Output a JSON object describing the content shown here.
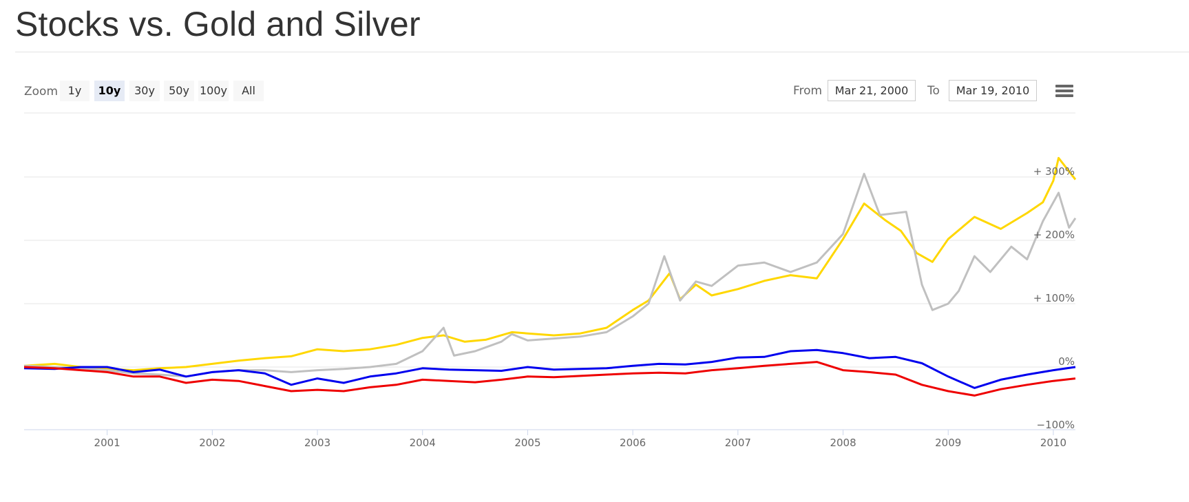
{
  "page": {
    "title": "Stocks vs. Gold and Silver"
  },
  "toolbar": {
    "zoom_label": "Zoom",
    "zoom_buttons": [
      "1y",
      "10y",
      "30y",
      "50y",
      "100y",
      "All"
    ],
    "active_zoom": "10y",
    "from_label": "From",
    "from_value": "Mar 21, 2000",
    "to_label": "To",
    "to_value": "Mar 19, 2010",
    "menu_icon": "hamburger-menu-icon"
  },
  "chart_data": {
    "type": "line",
    "title": "",
    "xlabel": "",
    "ylabel": "",
    "grid": true,
    "x_tick_labels": [
      "2001",
      "2002",
      "2003",
      "2004",
      "2005",
      "2006",
      "2007",
      "2008",
      "2009",
      "2010"
    ],
    "y_tick_labels": [
      "+ 300%",
      "+ 200%",
      "+ 100%",
      "0%",
      "−100%"
    ],
    "y_tick_values": [
      300,
      200,
      100,
      0,
      -100
    ],
    "ylim": [
      -100,
      300
    ],
    "xlim": [
      2000.21,
      2010.21
    ],
    "series": [
      {
        "color": "#ffd700",
        "points": [
          [
            2000.21,
            2
          ],
          [
            2000.5,
            5
          ],
          [
            2000.75,
            0
          ],
          [
            2001,
            -3
          ],
          [
            2001.25,
            -5
          ],
          [
            2001.5,
            -2
          ],
          [
            2001.75,
            0
          ],
          [
            2002,
            5
          ],
          [
            2002.25,
            10
          ],
          [
            2002.5,
            14
          ],
          [
            2002.75,
            17
          ],
          [
            2003,
            28
          ],
          [
            2003.25,
            25
          ],
          [
            2003.5,
            28
          ],
          [
            2003.75,
            35
          ],
          [
            2004,
            46
          ],
          [
            2004.2,
            50
          ],
          [
            2004.4,
            40
          ],
          [
            2004.6,
            43
          ],
          [
            2004.85,
            55
          ],
          [
            2005,
            53
          ],
          [
            2005.25,
            50
          ],
          [
            2005.5,
            53
          ],
          [
            2005.75,
            62
          ],
          [
            2006,
            90
          ],
          [
            2006.15,
            105
          ],
          [
            2006.35,
            148
          ],
          [
            2006.45,
            107
          ],
          [
            2006.6,
            130
          ],
          [
            2006.75,
            113
          ],
          [
            2007,
            123
          ],
          [
            2007.25,
            136
          ],
          [
            2007.5,
            145
          ],
          [
            2007.75,
            140
          ],
          [
            2008,
            202
          ],
          [
            2008.2,
            258
          ],
          [
            2008.4,
            232
          ],
          [
            2008.55,
            215
          ],
          [
            2008.7,
            180
          ],
          [
            2008.85,
            166
          ],
          [
            2009,
            202
          ],
          [
            2009.25,
            237
          ],
          [
            2009.5,
            218
          ],
          [
            2009.75,
            243
          ],
          [
            2009.9,
            260
          ],
          [
            2010,
            294
          ],
          [
            2010.05,
            330
          ],
          [
            2010.21,
            296
          ]
        ]
      },
      {
        "color": "#c0c0c0",
        "points": [
          [
            2000.21,
            2
          ],
          [
            2000.5,
            0
          ],
          [
            2000.75,
            -2
          ],
          [
            2001,
            -5
          ],
          [
            2001.25,
            -10
          ],
          [
            2001.5,
            -12
          ],
          [
            2001.75,
            -15
          ],
          [
            2002,
            -8
          ],
          [
            2002.25,
            -5
          ],
          [
            2002.5,
            -5
          ],
          [
            2002.75,
            -8
          ],
          [
            2003,
            -5
          ],
          [
            2003.25,
            -3
          ],
          [
            2003.5,
            0
          ],
          [
            2003.75,
            5
          ],
          [
            2004,
            25
          ],
          [
            2004.2,
            62
          ],
          [
            2004.3,
            18
          ],
          [
            2004.5,
            25
          ],
          [
            2004.75,
            40
          ],
          [
            2004.85,
            52
          ],
          [
            2005,
            42
          ],
          [
            2005.25,
            45
          ],
          [
            2005.5,
            48
          ],
          [
            2005.75,
            55
          ],
          [
            2006,
            80
          ],
          [
            2006.15,
            100
          ],
          [
            2006.3,
            175
          ],
          [
            2006.45,
            105
          ],
          [
            2006.6,
            135
          ],
          [
            2006.75,
            128
          ],
          [
            2007,
            160
          ],
          [
            2007.25,
            165
          ],
          [
            2007.5,
            150
          ],
          [
            2007.75,
            165
          ],
          [
            2008,
            210
          ],
          [
            2008.2,
            305
          ],
          [
            2008.35,
            240
          ],
          [
            2008.6,
            245
          ],
          [
            2008.75,
            130
          ],
          [
            2008.85,
            90
          ],
          [
            2009,
            100
          ],
          [
            2009.1,
            120
          ],
          [
            2009.25,
            175
          ],
          [
            2009.4,
            150
          ],
          [
            2009.6,
            190
          ],
          [
            2009.75,
            170
          ],
          [
            2009.9,
            230
          ],
          [
            2010.05,
            275
          ],
          [
            2010.15,
            220
          ],
          [
            2010.21,
            235
          ]
        ]
      },
      {
        "color": "#0000ee",
        "points": [
          [
            2000.21,
            -2
          ],
          [
            2000.5,
            -3
          ],
          [
            2000.75,
            0
          ],
          [
            2001,
            0
          ],
          [
            2001.25,
            -8
          ],
          [
            2001.5,
            -4
          ],
          [
            2001.75,
            -15
          ],
          [
            2002,
            -8
          ],
          [
            2002.25,
            -5
          ],
          [
            2002.5,
            -10
          ],
          [
            2002.75,
            -28
          ],
          [
            2003,
            -18
          ],
          [
            2003.25,
            -25
          ],
          [
            2003.5,
            -15
          ],
          [
            2003.75,
            -10
          ],
          [
            2004,
            -2
          ],
          [
            2004.25,
            -4
          ],
          [
            2004.5,
            -5
          ],
          [
            2004.75,
            -6
          ],
          [
            2005,
            0
          ],
          [
            2005.25,
            -4
          ],
          [
            2005.5,
            -3
          ],
          [
            2005.75,
            -2
          ],
          [
            2006,
            2
          ],
          [
            2006.25,
            5
          ],
          [
            2006.5,
            4
          ],
          [
            2006.75,
            8
          ],
          [
            2007,
            15
          ],
          [
            2007.25,
            16
          ],
          [
            2007.5,
            25
          ],
          [
            2007.75,
            27
          ],
          [
            2008,
            22
          ],
          [
            2008.25,
            14
          ],
          [
            2008.5,
            16
          ],
          [
            2008.75,
            6
          ],
          [
            2009,
            -15
          ],
          [
            2009.25,
            -33
          ],
          [
            2009.5,
            -20
          ],
          [
            2009.75,
            -12
          ],
          [
            2010,
            -5
          ],
          [
            2010.21,
            0
          ]
        ]
      },
      {
        "color": "#ee0000",
        "points": [
          [
            2000.21,
            0
          ],
          [
            2000.5,
            -2
          ],
          [
            2000.75,
            -5
          ],
          [
            2001,
            -8
          ],
          [
            2001.25,
            -15
          ],
          [
            2001.5,
            -15
          ],
          [
            2001.75,
            -25
          ],
          [
            2002,
            -20
          ],
          [
            2002.25,
            -22
          ],
          [
            2002.5,
            -30
          ],
          [
            2002.75,
            -38
          ],
          [
            2003,
            -36
          ],
          [
            2003.25,
            -38
          ],
          [
            2003.5,
            -32
          ],
          [
            2003.75,
            -28
          ],
          [
            2004,
            -20
          ],
          [
            2004.25,
            -22
          ],
          [
            2004.5,
            -24
          ],
          [
            2004.75,
            -20
          ],
          [
            2005,
            -15
          ],
          [
            2005.25,
            -16
          ],
          [
            2005.5,
            -14
          ],
          [
            2005.75,
            -12
          ],
          [
            2006,
            -10
          ],
          [
            2006.25,
            -9
          ],
          [
            2006.5,
            -10
          ],
          [
            2006.75,
            -5
          ],
          [
            2007,
            -2
          ],
          [
            2007.25,
            2
          ],
          [
            2007.5,
            5
          ],
          [
            2007.75,
            8
          ],
          [
            2008,
            -5
          ],
          [
            2008.25,
            -8
          ],
          [
            2008.5,
            -12
          ],
          [
            2008.75,
            -28
          ],
          [
            2009,
            -38
          ],
          [
            2009.25,
            -45
          ],
          [
            2009.5,
            -35
          ],
          [
            2009.75,
            -28
          ],
          [
            2010,
            -22
          ],
          [
            2010.21,
            -18
          ]
        ]
      }
    ]
  }
}
